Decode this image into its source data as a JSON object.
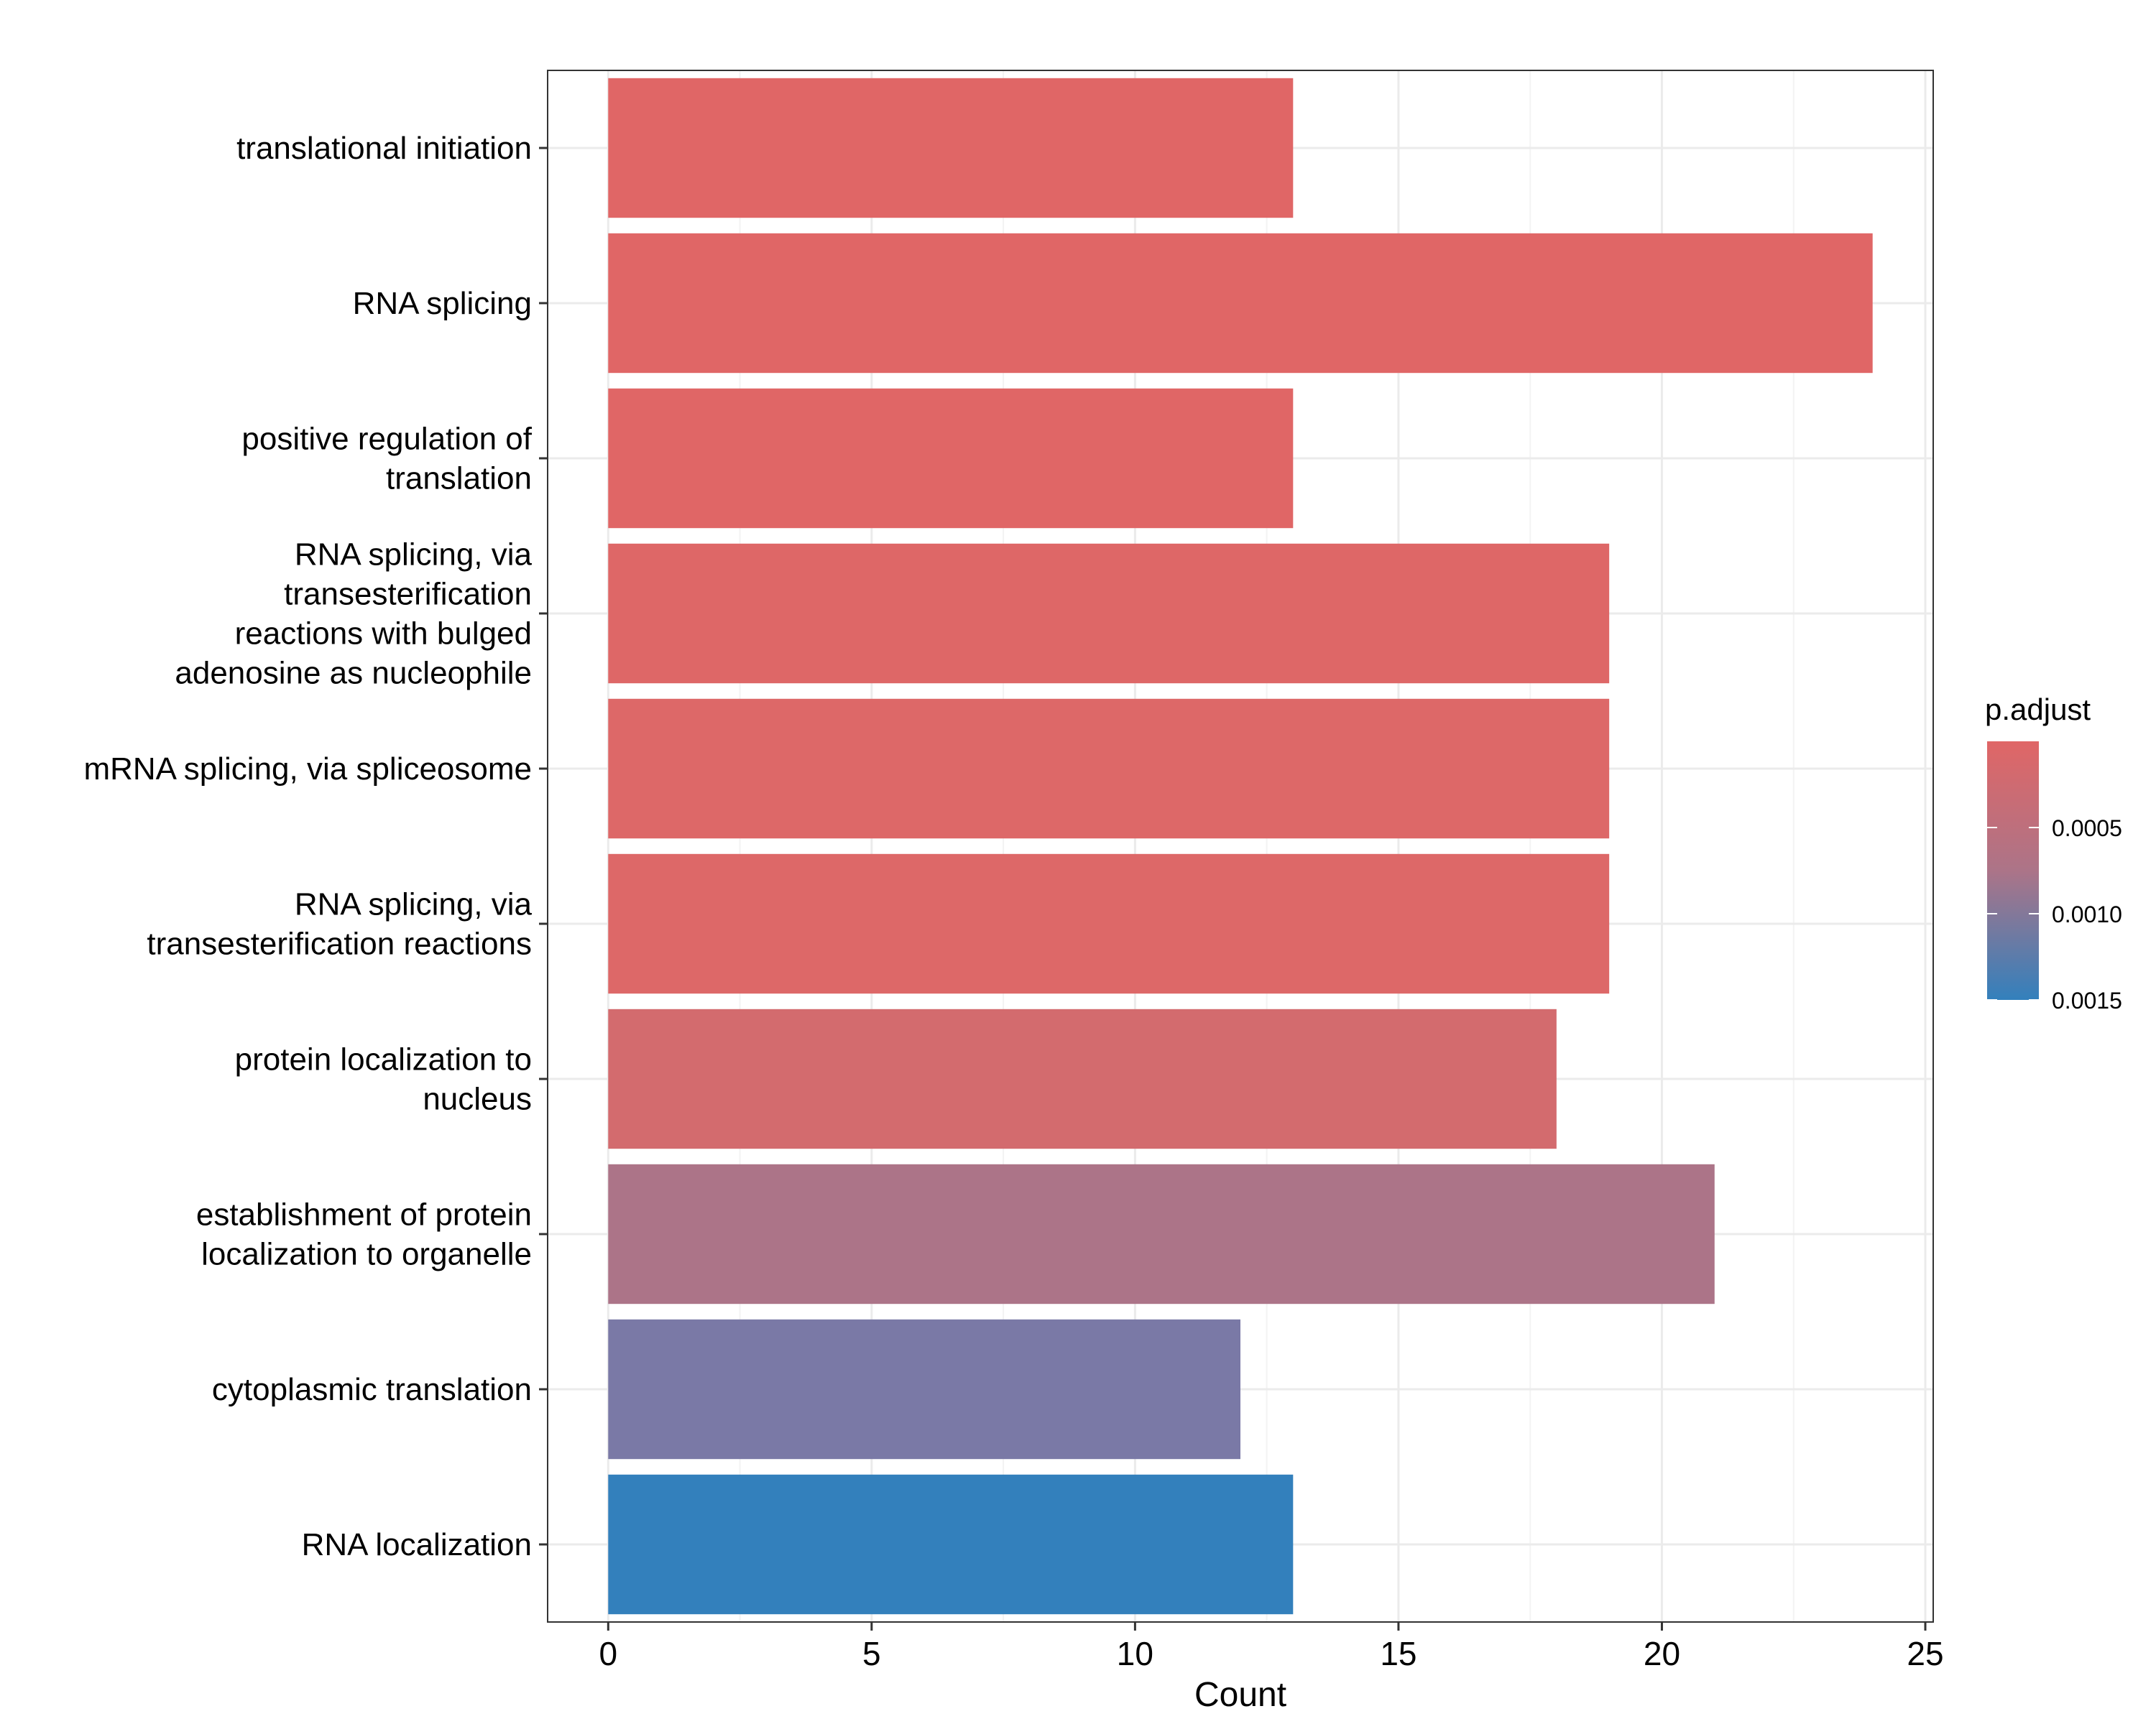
{
  "chart_data": {
    "type": "bar",
    "orientation": "horizontal",
    "categories": [
      [
        "translational initiation"
      ],
      [
        "RNA splicing"
      ],
      [
        "positive regulation of",
        "translation"
      ],
      [
        "RNA splicing, via",
        "transesterification",
        "reactions with bulged",
        "adenosine as nucleophile"
      ],
      [
        "mRNA splicing, via spliceosome"
      ],
      [
        "RNA splicing, via",
        "transesterification reactions"
      ],
      [
        "protein localization to",
        "nucleus"
      ],
      [
        "establishment of protein",
        "localization to organelle"
      ],
      [
        "cytoplasmic translation"
      ],
      [
        "RNA localization"
      ]
    ],
    "values": [
      13,
      24,
      13,
      19,
      19,
      19,
      18,
      21,
      12,
      13
    ],
    "bar_colors": [
      "#E06666",
      "#E06666",
      "#E06666",
      "#DE6767",
      "#DD6868",
      "#DD6868",
      "#D36B6E",
      "#AC7488",
      "#7A79A6",
      "#3380BC"
    ],
    "xlabel": "Count",
    "ylabel": "",
    "xlim": [
      -1.15,
      25.15
    ],
    "xticks": [
      0,
      5,
      10,
      15,
      20,
      25
    ],
    "grid": true,
    "legend": {
      "title": "p.adjust",
      "placement": "right",
      "type": "colorbar",
      "range": [
        0.0,
        0.0015
      ],
      "ticks": [
        {
          "value": 0.0005,
          "label": "0.0005"
        },
        {
          "value": 0.001,
          "label": "0.0010"
        },
        {
          "value": 0.0015,
          "label": "0.0015"
        }
      ],
      "low_color": "#E06666",
      "high_color": "#3380BC"
    }
  }
}
